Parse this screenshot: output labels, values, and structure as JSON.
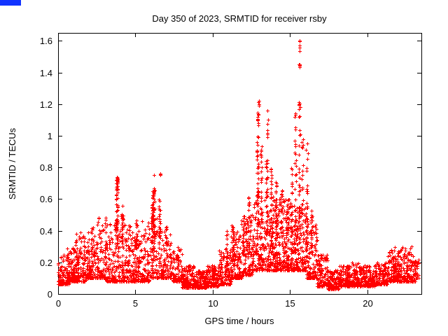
{
  "figure": {
    "background": "#ffffff",
    "artifact": {
      "color": "#1133ff",
      "width": 30,
      "height": 8
    }
  },
  "chart_data": {
    "type": "scatter",
    "title": "Day 350 of 2023, SRMTID for receiver rsby",
    "xlabel": "GPS time / hours",
    "ylabel": "SRMTID / TECUs",
    "xlim": [
      0,
      23.5
    ],
    "ylim": [
      0,
      1.65
    ],
    "grid": false,
    "legend": "none",
    "xticks": [
      {
        "v": 0,
        "label": "0"
      },
      {
        "v": 5,
        "label": "5"
      },
      {
        "v": 10,
        "label": "10"
      },
      {
        "v": 15,
        "label": "15"
      },
      {
        "v": 20,
        "label": "20"
      }
    ],
    "yticks": [
      {
        "v": 0,
        "label": "0"
      },
      {
        "v": 0.2,
        "label": "0.2"
      },
      {
        "v": 0.4,
        "label": "0.4"
      },
      {
        "v": 0.6,
        "label": "0.6"
      },
      {
        "v": 0.8,
        "label": "0.8"
      },
      {
        "v": 1,
        "label": "1"
      },
      {
        "v": 1.2,
        "label": "1.2"
      },
      {
        "v": 1.4,
        "label": "1.4"
      },
      {
        "v": 1.6,
        "label": "1.6"
      }
    ],
    "marker": {
      "shape": "plus",
      "size": 5,
      "color": "#ff0000",
      "stroke": 1
    },
    "notable_peaks": [
      {
        "x": 3.8,
        "y": 0.73
      },
      {
        "x": 6.2,
        "y": 0.75
      },
      {
        "x": 13.0,
        "y": 1.22
      },
      {
        "x": 13.55,
        "y": 1.16
      },
      {
        "x": 15.35,
        "y": 1.14
      },
      {
        "x": 15.6,
        "y": 1.6
      },
      {
        "x": 16.1,
        "y": 0.95
      }
    ],
    "seed": 1350,
    "cluster_format": [
      "x_center",
      "x_halfwidth",
      "y_min",
      "y_max",
      "count",
      "skew_exponent"
    ],
    "point_clusters": [
      [
        0.35,
        0.35,
        0.06,
        0.25,
        110,
        2.2
      ],
      [
        0.9,
        0.3,
        0.08,
        0.3,
        100,
        2.2
      ],
      [
        1.5,
        0.4,
        0.08,
        0.4,
        130,
        2.4
      ],
      [
        2.2,
        0.35,
        0.1,
        0.42,
        120,
        2.2
      ],
      [
        2.8,
        0.3,
        0.1,
        0.5,
        100,
        2.4
      ],
      [
        3.5,
        0.4,
        0.08,
        0.45,
        120,
        2.6
      ],
      [
        4.3,
        0.4,
        0.08,
        0.45,
        120,
        2.4
      ],
      [
        5.0,
        0.3,
        0.08,
        0.4,
        100,
        2.4
      ],
      [
        5.6,
        0.3,
        0.08,
        0.5,
        100,
        2.4
      ],
      [
        6.3,
        0.35,
        0.1,
        0.55,
        100,
        2.0
      ],
      [
        7.0,
        0.35,
        0.1,
        0.4,
        100,
        2.2
      ],
      [
        7.7,
        0.3,
        0.08,
        0.3,
        100,
        2.2
      ],
      [
        8.4,
        0.4,
        0.04,
        0.18,
        120,
        2.0
      ],
      [
        9.2,
        0.4,
        0.04,
        0.15,
        130,
        2.0
      ],
      [
        10.0,
        0.4,
        0.05,
        0.18,
        130,
        2.0
      ],
      [
        10.8,
        0.4,
        0.06,
        0.28,
        120,
        2.2
      ],
      [
        11.5,
        0.35,
        0.1,
        0.4,
        120,
        2.0
      ],
      [
        12.2,
        0.35,
        0.12,
        0.5,
        120,
        2.0
      ],
      [
        12.9,
        0.35,
        0.15,
        0.6,
        120,
        1.8
      ],
      [
        13.6,
        0.35,
        0.15,
        0.65,
        130,
        1.8
      ],
      [
        14.3,
        0.35,
        0.15,
        0.6,
        140,
        1.9
      ],
      [
        15.0,
        0.35,
        0.15,
        0.6,
        140,
        1.9
      ],
      [
        15.7,
        0.35,
        0.15,
        0.55,
        130,
        1.9
      ],
      [
        16.4,
        0.35,
        0.1,
        0.45,
        120,
        2.0
      ],
      [
        17.1,
        0.35,
        0.05,
        0.25,
        120,
        2.0
      ],
      [
        17.8,
        0.35,
        0.03,
        0.15,
        120,
        1.8
      ],
      [
        18.5,
        0.35,
        0.05,
        0.18,
        130,
        2.0
      ],
      [
        19.3,
        0.4,
        0.05,
        0.2,
        130,
        2.0
      ],
      [
        20.1,
        0.4,
        0.05,
        0.18,
        130,
        2.0
      ],
      [
        20.9,
        0.4,
        0.06,
        0.2,
        130,
        2.0
      ],
      [
        21.7,
        0.4,
        0.08,
        0.28,
        130,
        2.0
      ],
      [
        22.6,
        0.5,
        0.08,
        0.3,
        150,
        2.2
      ],
      [
        23.2,
        0.15,
        0.1,
        0.22,
        30,
        2.0
      ],
      [
        3.8,
        0.07,
        0.3,
        0.7,
        50,
        1.2
      ],
      [
        3.82,
        0.05,
        0.66,
        0.74,
        22,
        1.0
      ],
      [
        4.15,
        0.06,
        0.3,
        0.56,
        22,
        1.2
      ],
      [
        5.05,
        0.05,
        0.28,
        0.47,
        18,
        1.2
      ],
      [
        6.15,
        0.08,
        0.25,
        0.66,
        60,
        1.1
      ],
      [
        6.2,
        0.04,
        0.58,
        0.68,
        14,
        1.0
      ],
      [
        6.55,
        0.04,
        0.35,
        0.62,
        20,
        1.1
      ],
      [
        6.6,
        0.02,
        0.72,
        0.76,
        3,
        1.0
      ],
      [
        7.0,
        0.04,
        0.28,
        0.45,
        12,
        1.2
      ],
      [
        10.9,
        0.06,
        0.18,
        0.4,
        16,
        1.2
      ],
      [
        11.3,
        0.06,
        0.2,
        0.44,
        20,
        1.2
      ],
      [
        12.0,
        0.05,
        0.25,
        0.52,
        18,
        1.2
      ],
      [
        12.35,
        0.05,
        0.3,
        0.62,
        16,
        1.2
      ],
      [
        12.9,
        0.06,
        0.35,
        1.0,
        40,
        1.1
      ],
      [
        12.95,
        0.04,
        1.0,
        1.22,
        12,
        1.0
      ],
      [
        13.15,
        0.05,
        0.4,
        0.95,
        22,
        1.1
      ],
      [
        13.5,
        0.05,
        0.35,
        0.92,
        26,
        1.1
      ],
      [
        13.55,
        0.03,
        0.98,
        1.16,
        6,
        1.0
      ],
      [
        13.8,
        0.05,
        0.3,
        0.8,
        24,
        1.1
      ],
      [
        14.1,
        0.05,
        0.3,
        0.72,
        24,
        1.1
      ],
      [
        14.45,
        0.05,
        0.3,
        0.66,
        20,
        1.1
      ],
      [
        14.8,
        0.05,
        0.3,
        0.6,
        20,
        1.1
      ],
      [
        15.1,
        0.05,
        0.35,
        0.8,
        20,
        1.1
      ],
      [
        15.35,
        0.05,
        0.4,
        1.14,
        26,
        1.1
      ],
      [
        15.6,
        0.05,
        0.4,
        1.32,
        30,
        1.1
      ],
      [
        15.62,
        0.03,
        1.38,
        1.6,
        9,
        1.0
      ],
      [
        15.8,
        0.05,
        0.4,
        1.05,
        20,
        1.1
      ],
      [
        16.1,
        0.05,
        0.3,
        0.95,
        24,
        1.1
      ],
      [
        16.4,
        0.05,
        0.25,
        0.6,
        16,
        1.2
      ],
      [
        21.8,
        0.05,
        0.15,
        0.3,
        18,
        1.4
      ]
    ]
  }
}
